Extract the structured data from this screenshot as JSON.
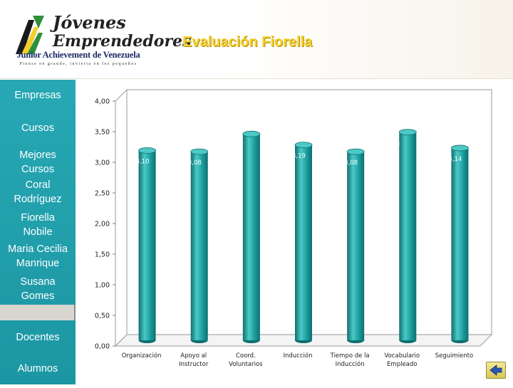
{
  "header": {
    "title": "Evaluación Fiorella",
    "logo": {
      "line1": "Jóvenes",
      "line2": "Emprendedores",
      "org": "Junior Achievement de Venezuela",
      "tagline": "Piense en grande, invierta en los pequeños"
    }
  },
  "sidebar": {
    "items": [
      {
        "label": "Empresas"
      },
      {
        "label": "Cursos"
      },
      {
        "label": "Mejores Cursos"
      },
      {
        "label": "Coral Rodríguez"
      },
      {
        "label": "Fiorella Nobile"
      },
      {
        "label": "Maria Cecilia Manrique"
      },
      {
        "label": "Susana Gomes"
      },
      {
        "label": "Docentes"
      },
      {
        "label": "Alumnos"
      }
    ]
  },
  "back_button": {
    "icon": "back-arrow-icon"
  },
  "colors": {
    "sidebar": "#1f9fab",
    "bar_front": "#1a9c9c",
    "bar_dark": "#0e6e70",
    "bar_light": "#4cc9c6",
    "title": "#f2cf2e"
  },
  "chart_data": {
    "type": "bar",
    "title": "",
    "xlabel": "",
    "ylabel": "",
    "categories": [
      [
        "Organización"
      ],
      [
        "Apoyo al",
        "Instructor"
      ],
      [
        "Coord.",
        "Voluntarios"
      ],
      [
        "Inducción"
      ],
      [
        "Tiempo de la",
        "Inducción"
      ],
      [
        "Vocabulario",
        "Empleado"
      ],
      [
        "Seguimiento"
      ]
    ],
    "values": [
      3.1,
      3.08,
      3.37,
      3.19,
      3.08,
      3.4,
      3.14
    ],
    "value_labels": [
      "3,10",
      "3,08",
      "3,37",
      "3,19",
      "3,08",
      "3,40",
      "3,14"
    ],
    "ylim": [
      0,
      4
    ],
    "yticks": [
      "0,00",
      "0,50",
      "1,00",
      "1,50",
      "2,00",
      "2,50",
      "3,00",
      "3,50",
      "4,00"
    ],
    "grid": false,
    "style": "3d-cylinder"
  }
}
